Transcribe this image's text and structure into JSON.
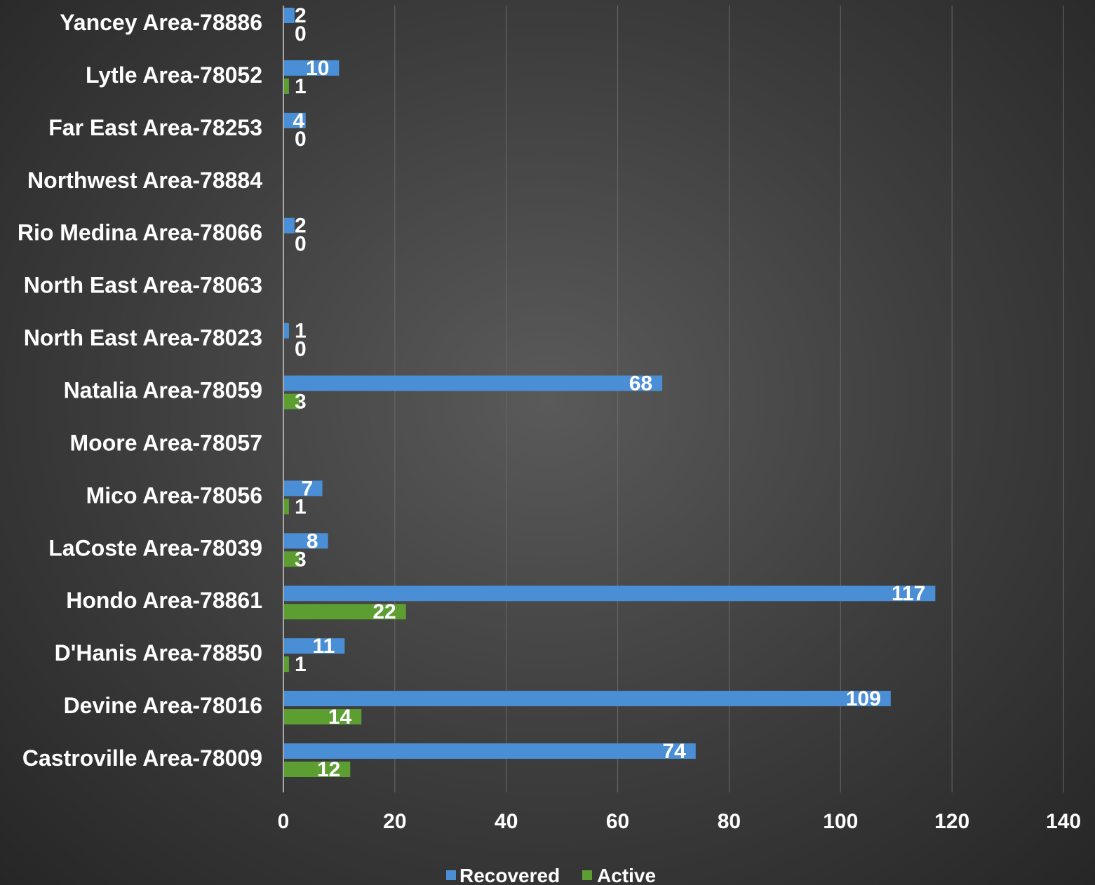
{
  "chart_data": {
    "type": "bar",
    "orientation": "horizontal",
    "categories": [
      "Yancey Area-78886",
      "Lytle Area-78052",
      "Far East Area-78253",
      "Northwest Area-78884",
      "Rio Medina Area-78066",
      "North East Area-78063",
      "North East Area-78023",
      "Natalia Area-78059",
      "Moore Area-78057",
      "Mico Area-78056",
      "LaCoste Area-78039",
      "Hondo Area-78861",
      "D'Hanis Area-78850",
      "Devine Area-78016",
      "Castroville Area-78009"
    ],
    "series": [
      {
        "name": "Recovered",
        "color": "#4a8fd6",
        "values": [
          2,
          10,
          4,
          null,
          2,
          null,
          1,
          68,
          null,
          7,
          8,
          117,
          11,
          109,
          74
        ]
      },
      {
        "name": "Active",
        "color": "#5d9e33",
        "values": [
          0,
          1,
          0,
          null,
          0,
          null,
          0,
          3,
          null,
          1,
          3,
          22,
          1,
          14,
          12
        ]
      }
    ],
    "xlim": [
      0,
      140
    ],
    "xticks": [
      "0",
      "20",
      "40",
      "60",
      "80",
      "100",
      "120",
      "140"
    ],
    "grid": true,
    "legend_position": "bottom",
    "title": "",
    "xlabel": "",
    "ylabel": ""
  }
}
